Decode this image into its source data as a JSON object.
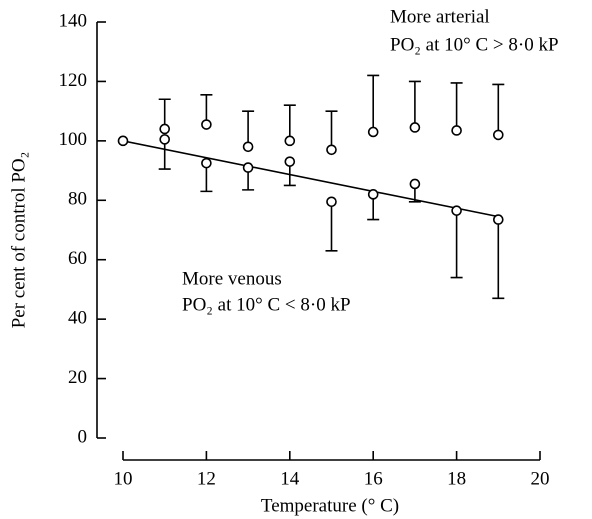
{
  "chart_data": {
    "type": "scatter",
    "xlabel": "Temperature (° C)",
    "ylabel": "Per cent of control PO₂",
    "xlim": [
      10,
      20
    ],
    "xticks": [
      10,
      12,
      14,
      16,
      18,
      20
    ],
    "ylim": [
      0,
      140
    ],
    "yticks": [
      0,
      20,
      40,
      60,
      80,
      100,
      120,
      140
    ],
    "annotations": [
      {
        "lines": [
          "More arterial",
          "PO₂ at 10° C > 8·0 kP"
        ]
      },
      {
        "lines": [
          "More venous",
          "PO₂ at 10° C < 8·0 kP"
        ]
      }
    ],
    "series": [
      {
        "x": [
          11,
          12,
          13,
          14,
          15,
          16,
          17,
          18,
          19
        ],
        "values": [
          104,
          105.5,
          98,
          100,
          97,
          103,
          104.5,
          103.5,
          102
        ],
        "errors": [
          10,
          10,
          12,
          12,
          13,
          19,
          15.5,
          16,
          17
        ],
        "error_direction": "up",
        "color": "#000000"
      },
      {
        "x": [
          10,
          11,
          12,
          13,
          14,
          15,
          16,
          17,
          18,
          19
        ],
        "values": [
          100,
          100.5,
          92.5,
          91,
          93,
          79.5,
          82,
          85.5,
          76.5,
          73.5
        ],
        "errors": [
          null,
          10,
          9.5,
          7.5,
          8,
          16.5,
          8.5,
          6,
          22.5,
          26.5
        ],
        "error_direction": "down",
        "color": "#000000"
      }
    ],
    "fit": {
      "x": [
        10,
        19
      ],
      "y": [
        100,
        74.5
      ],
      "color": "#000000"
    }
  }
}
